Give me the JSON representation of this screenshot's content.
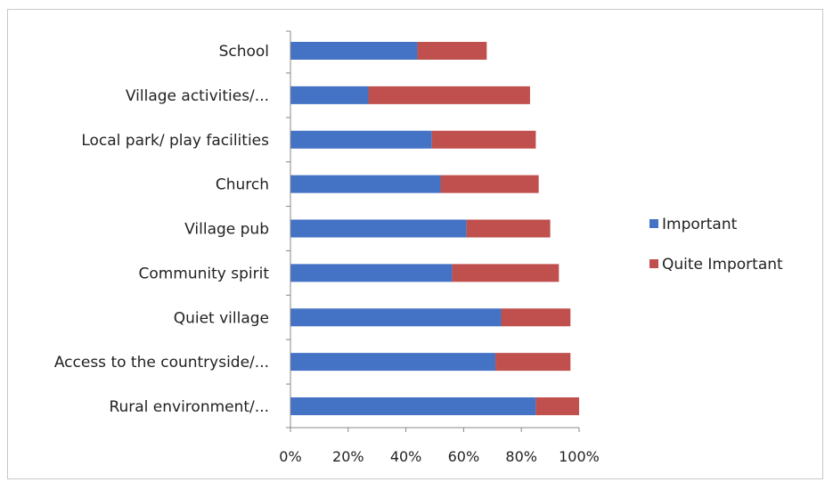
{
  "chart_data": {
    "type": "bar",
    "orientation": "horizontal",
    "stacked": true,
    "categories": [
      "School",
      "Village activities/...",
      "Local park/ play facilities",
      "Church",
      "Village pub",
      "Community spirit",
      "Quiet village",
      "Access to the countryside/...",
      "Rural environment/..."
    ],
    "series": [
      {
        "name": "Important",
        "color": "#4472c4",
        "values": [
          44,
          27,
          49,
          52,
          61,
          56,
          73,
          71,
          85
        ]
      },
      {
        "name": "Quite Important",
        "color": "#c0504d",
        "values": [
          24,
          56,
          36,
          34,
          29,
          37,
          24,
          26,
          15
        ]
      }
    ],
    "x_ticks": [
      "0%",
      "20%",
      "40%",
      "60%",
      "80%",
      "100%"
    ],
    "xlim": [
      0,
      100
    ],
    "legend_position": "right",
    "grid": false
  }
}
